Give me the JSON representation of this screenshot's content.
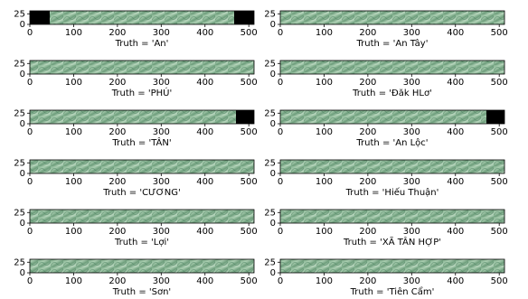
{
  "chart_data": [
    {
      "type": "image",
      "xlabel": "Truth = 'An'",
      "xlim": [
        0,
        512
      ],
      "ylim": [
        32,
        0
      ],
      "xticks": [
        0,
        100,
        200,
        300,
        400,
        500
      ],
      "yticks": [
        0,
        25
      ]
    },
    {
      "type": "image",
      "xlabel": "Truth = 'An Tây'",
      "xlim": [
        0,
        512
      ],
      "ylim": [
        32,
        0
      ],
      "xticks": [
        0,
        100,
        200,
        300,
        400,
        500
      ],
      "yticks": [
        0,
        25
      ]
    },
    {
      "type": "image",
      "xlabel": "Truth = 'PHÚ'",
      "xlim": [
        0,
        512
      ],
      "ylim": [
        32,
        0
      ],
      "xticks": [
        0,
        100,
        200,
        300,
        400,
        500
      ],
      "yticks": [
        0,
        25
      ]
    },
    {
      "type": "image",
      "xlabel": "Truth = 'Đăk HLơ'",
      "xlim": [
        0,
        512
      ],
      "ylim": [
        32,
        0
      ],
      "xticks": [
        0,
        100,
        200,
        300,
        400,
        500
      ],
      "yticks": [
        0,
        25
      ]
    },
    {
      "type": "image",
      "xlabel": "Truth = 'TÂN'",
      "xlim": [
        0,
        512
      ],
      "ylim": [
        32,
        0
      ],
      "xticks": [
        0,
        100,
        200,
        300,
        400,
        500
      ],
      "yticks": [
        0,
        25
      ]
    },
    {
      "type": "image",
      "xlabel": "Truth = 'An Lộc'",
      "xlim": [
        0,
        512
      ],
      "ylim": [
        32,
        0
      ],
      "xticks": [
        0,
        100,
        200,
        300,
        400,
        500
      ],
      "yticks": [
        0,
        25
      ]
    },
    {
      "type": "image",
      "xlabel": "Truth = 'CƯƠNG'",
      "xlim": [
        0,
        512
      ],
      "ylim": [
        32,
        0
      ],
      "xticks": [
        0,
        100,
        200,
        300,
        400,
        500
      ],
      "yticks": [
        0,
        25
      ]
    },
    {
      "type": "image",
      "xlabel": "Truth = 'Hiếu Thuận'",
      "xlim": [
        0,
        512
      ],
      "ylim": [
        32,
        0
      ],
      "xticks": [
        0,
        100,
        200,
        300,
        400,
        500
      ],
      "yticks": [
        0,
        25
      ]
    },
    {
      "type": "image",
      "xlabel": "Truth = 'Lợi'",
      "xlim": [
        0,
        512
      ],
      "ylim": [
        32,
        0
      ],
      "xticks": [
        0,
        100,
        200,
        300,
        400,
        500
      ],
      "yticks": [
        0,
        25
      ]
    },
    {
      "type": "image",
      "xlabel": "Truth = 'XÃ TÂN HỢP'",
      "xlim": [
        0,
        512
      ],
      "ylim": [
        32,
        0
      ],
      "xticks": [
        0,
        100,
        200,
        300,
        400,
        500
      ],
      "yticks": [
        0,
        25
      ]
    },
    {
      "type": "image",
      "xlabel": "Truth = 'Sơn'",
      "xlim": [
        0,
        512
      ],
      "ylim": [
        32,
        0
      ],
      "xticks": [
        0,
        100,
        200,
        300,
        400,
        500
      ],
      "yticks": [
        0,
        25
      ]
    },
    {
      "type": "image",
      "xlabel": "Truth = 'Tiên Cẩm'",
      "xlim": [
        0,
        512
      ],
      "ylim": [
        32,
        0
      ],
      "xticks": [
        0,
        100,
        200,
        300,
        400,
        500
      ],
      "yticks": [
        0,
        25
      ]
    }
  ]
}
